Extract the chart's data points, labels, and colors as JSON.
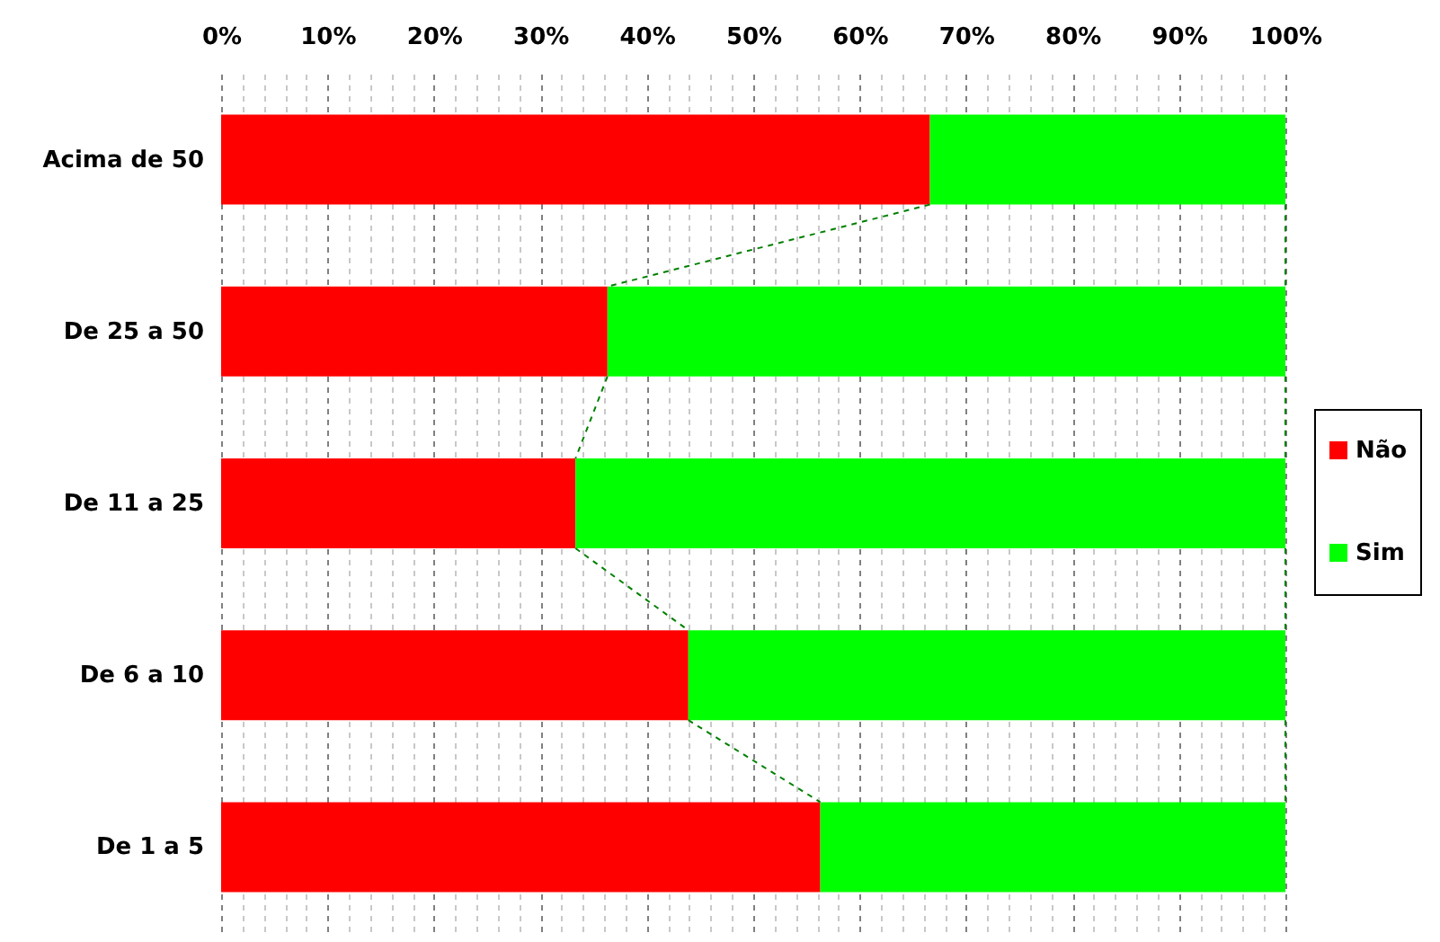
{
  "chart_data": {
    "type": "bar",
    "orientation": "horizontal",
    "stacked": true,
    "categories": [
      "Acima de 50",
      "De 25 a 50",
      "De 11 a 25",
      "De 6 a 10",
      "De 1 a 5"
    ],
    "series": [
      {
        "name": "Não",
        "color": "#ff0000",
        "values": [
          66.6,
          36.3,
          33.3,
          43.9,
          56.3
        ]
      },
      {
        "name": "Sim",
        "color": "#00ff00",
        "values": [
          33.4,
          63.7,
          66.7,
          56.1,
          43.7
        ]
      }
    ],
    "xlim": [
      0,
      100
    ],
    "xticks": [
      {
        "value": 0,
        "label": "0%"
      },
      {
        "value": 2,
        "label": null
      },
      {
        "value": 4,
        "label": null
      },
      {
        "value": 6,
        "label": null
      },
      {
        "value": 8,
        "label": null
      },
      {
        "value": 10,
        "label": "10%"
      },
      {
        "value": 12,
        "label": null
      },
      {
        "value": 14,
        "label": null
      },
      {
        "value": 16,
        "label": null
      },
      {
        "value": 18,
        "label": null
      },
      {
        "value": 20,
        "label": "20%"
      },
      {
        "value": 22,
        "label": null
      },
      {
        "value": 24,
        "label": null
      },
      {
        "value": 26,
        "label": null
      },
      {
        "value": 28,
        "label": null
      },
      {
        "value": 30,
        "label": "30%"
      },
      {
        "value": 32,
        "label": null
      },
      {
        "value": 34,
        "label": null
      },
      {
        "value": 36,
        "label": null
      },
      {
        "value": 38,
        "label": null
      },
      {
        "value": 40,
        "label": "40%"
      },
      {
        "value": 42,
        "label": null
      },
      {
        "value": 44,
        "label": null
      },
      {
        "value": 46,
        "label": null
      },
      {
        "value": 48,
        "label": null
      },
      {
        "value": 50,
        "label": "50%"
      },
      {
        "value": 52,
        "label": null
      },
      {
        "value": 54,
        "label": null
      },
      {
        "value": 56,
        "label": null
      },
      {
        "value": 58,
        "label": null
      },
      {
        "value": 60,
        "label": "60%"
      },
      {
        "value": 62,
        "label": null
      },
      {
        "value": 64,
        "label": null
      },
      {
        "value": 66,
        "label": null
      },
      {
        "value": 68,
        "label": null
      },
      {
        "value": 70,
        "label": "70%"
      },
      {
        "value": 72,
        "label": null
      },
      {
        "value": 74,
        "label": null
      },
      {
        "value": 76,
        "label": null
      },
      {
        "value": 78,
        "label": null
      },
      {
        "value": 80,
        "label": "80%"
      },
      {
        "value": 82,
        "label": null
      },
      {
        "value": 84,
        "label": null
      },
      {
        "value": 86,
        "label": null
      },
      {
        "value": 88,
        "label": null
      },
      {
        "value": 90,
        "label": "90%"
      },
      {
        "value": 92,
        "label": null
      },
      {
        "value": 94,
        "label": null
      },
      {
        "value": 96,
        "label": null
      },
      {
        "value": 98,
        "label": null
      },
      {
        "value": 100,
        "label": "100%"
      }
    ],
    "grid": "x",
    "legend": "right"
  }
}
